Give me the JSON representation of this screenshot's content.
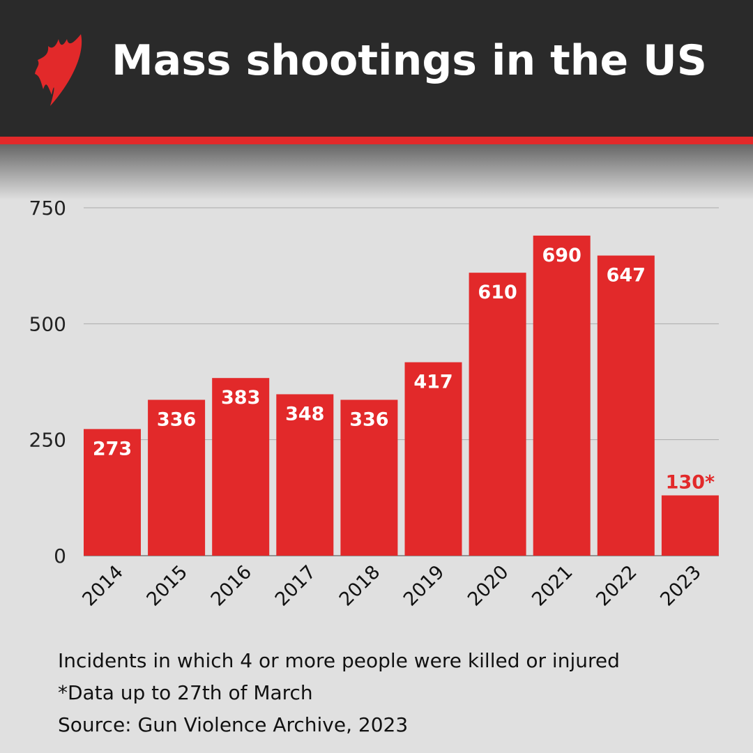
{
  "header": {
    "title": "Mass shootings in the US",
    "logo": "SBS logo"
  },
  "colors": {
    "bar": "#e2292a",
    "header_bg": "#2a2a2a",
    "background": "#e0e0e0"
  },
  "chart_data": {
    "type": "bar",
    "categories": [
      "2014",
      "2015",
      "2016",
      "2017",
      "2018",
      "2019",
      "2020",
      "2021",
      "2022",
      "2023"
    ],
    "values": [
      273,
      336,
      383,
      348,
      336,
      417,
      610,
      690,
      647,
      130
    ],
    "data_labels": [
      "273",
      "336",
      "383",
      "348",
      "336",
      "417",
      "610",
      "690",
      "647",
      "130*"
    ],
    "ylim": [
      0,
      750
    ],
    "yticks": [
      0,
      250,
      500,
      750
    ],
    "grid": true,
    "xlabel": "",
    "ylabel": ""
  },
  "notes": [
    "Incidents in which 4 or more people were killed or injured",
    "*Data up to 27th of March",
    "Source: Gun Violence Archive, 2023"
  ]
}
